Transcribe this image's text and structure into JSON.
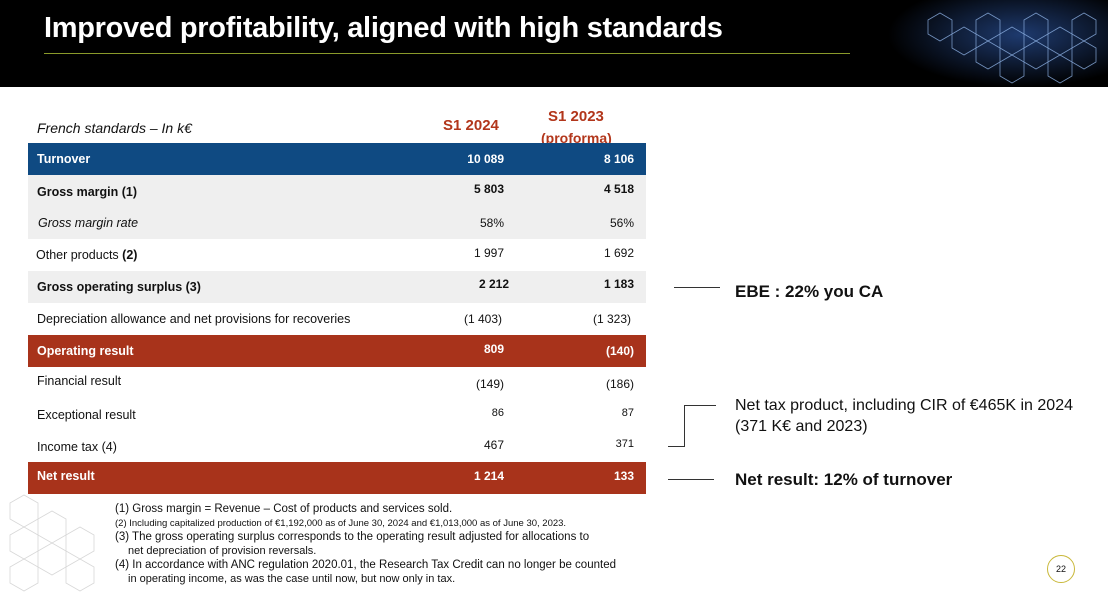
{
  "header": {
    "title": "Improved profitability, aligned with high standards"
  },
  "table": {
    "caption": "French standards – In k€",
    "col1": "S1 2024",
    "col2_line1": "S1 2023",
    "col2_line2": "(proforma)",
    "rows": [
      {
        "label": "Turnover",
        "v1": "10 089",
        "v2": "8 106"
      },
      {
        "label": "Gross margin (1)",
        "v1": "5 803",
        "v2": "4 518"
      },
      {
        "label": "Gross margin rate",
        "v1": "58%",
        "v2": "56%"
      },
      {
        "label_main": "Other products ",
        "label_bold": "(2)",
        "v1": "1 997",
        "v2": "1 692"
      },
      {
        "label": "Gross operating surplus (3)",
        "v1": "2 212",
        "v2": "1 183"
      },
      {
        "label": "Depreciation allowance and net provisions for recoveries",
        "v1": "(1 403)",
        "v2": "(1 323)"
      },
      {
        "label": "Operating result",
        "v1": "809",
        "v2": "(140)"
      },
      {
        "label": "Financial result",
        "v1": "(149)",
        "v2": "(186)"
      },
      {
        "label": "Exceptional result",
        "v1": "86",
        "v2": "87"
      },
      {
        "label": "Income tax (4)",
        "v1": "467",
        "v2": "371"
      },
      {
        "label": "Net result",
        "v1": "1 214",
        "v2": "133"
      }
    ]
  },
  "notes": [
    "(1) Gross margin = Revenue – Cost of products and services sold.",
    "(2) Including capitalized production of €1,192,000 as of June 30, 2024 and €1,013,000 as of June 30, 2023.",
    "(3) The gross operating surplus corresponds to the operating result adjusted for allocations to",
    "net depreciation of provision reversals.",
    "(4) In accordance with ANC regulation 2020.01, the Research Tax Credit can no longer be counted",
    "in operating income, as was the case until now, but now only in tax."
  ],
  "side": {
    "ebe": "EBE : 22% you CA",
    "tax_line1": "Net tax product, including CIR of €465K in 2024",
    "tax_line2": "(371 K€ and 2023)",
    "net": "Net result: 12% of turnover"
  },
  "page_number": "22",
  "colors": {
    "header_bg": "#000000",
    "blue_row": "#0f4a82",
    "red_row": "#a8331b",
    "accent_text": "#b2361b"
  }
}
